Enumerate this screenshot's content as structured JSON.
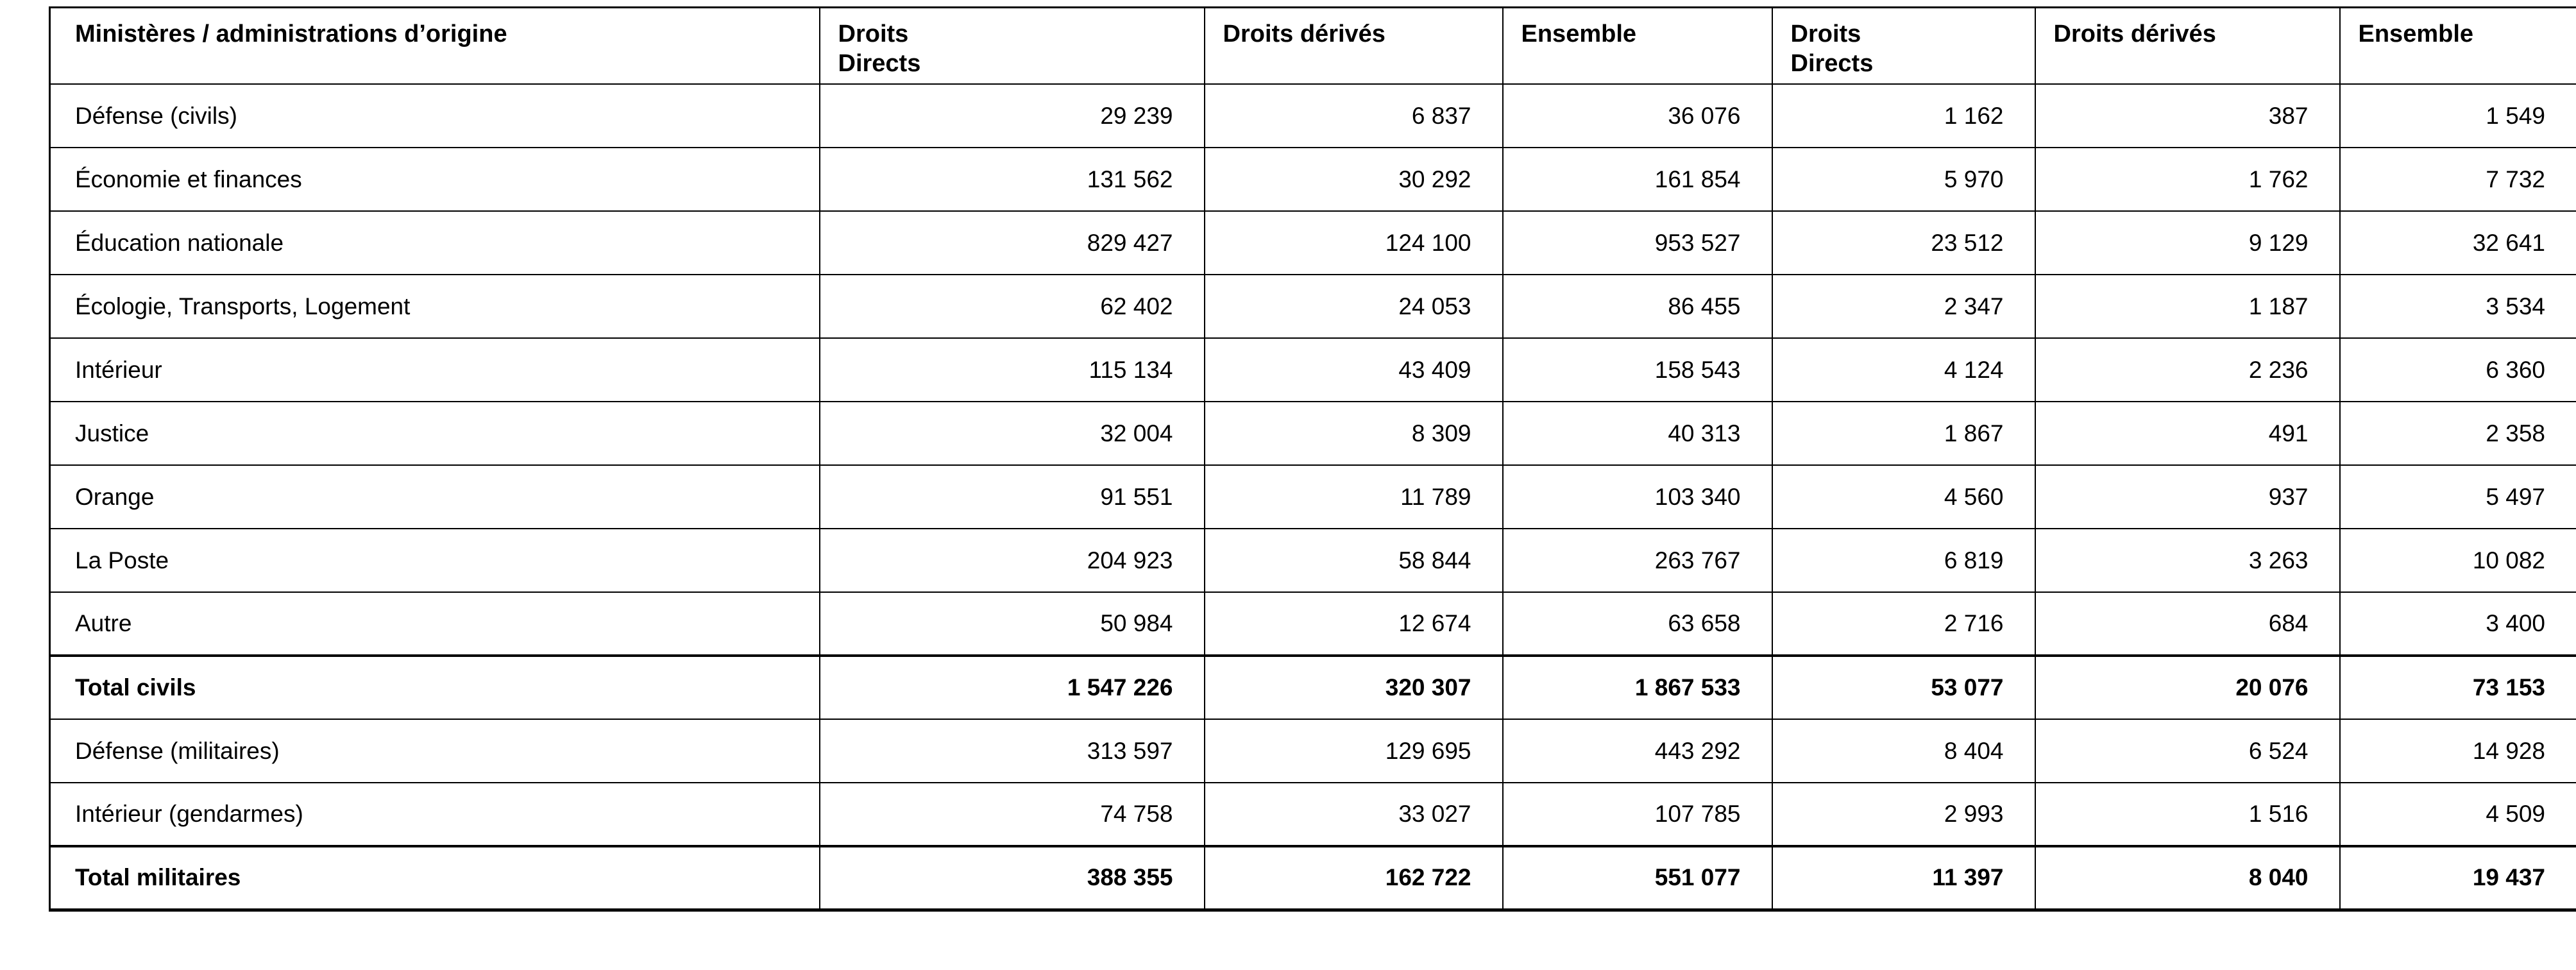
{
  "table": {
    "header": [
      "Ministères / administrations d’origine",
      "Droits\nDirects",
      "Droits dérivés",
      "Ensemble",
      "Droits\nDirects",
      "Droits dérivés",
      "Ensemble"
    ],
    "rows": [
      {
        "ministry": "Défense (civils)",
        "values": [
          "29 239",
          "6 837",
          "36 076",
          "1 162",
          "387",
          "1 549"
        ],
        "bold": false
      },
      {
        "ministry": "Économie et finances",
        "values": [
          "131 562",
          "30 292",
          "161 854",
          "5 970",
          "1 762",
          "7 732"
        ],
        "bold": false
      },
      {
        "ministry": "Éducation nationale",
        "values": [
          "829 427",
          "124 100",
          "953 527",
          "23 512",
          "9 129",
          "32 641"
        ],
        "bold": false
      },
      {
        "ministry": "Écologie, Transports, Logement",
        "values": [
          "62 402",
          "24 053",
          "86 455",
          "2 347",
          "1 187",
          "3 534"
        ],
        "bold": false
      },
      {
        "ministry": "Intérieur",
        "values": [
          "115 134",
          "43 409",
          "158 543",
          "4 124",
          "2 236",
          "6 360"
        ],
        "bold": false
      },
      {
        "ministry": "Justice",
        "values": [
          "32 004",
          "8 309",
          "40 313",
          "1 867",
          "491",
          "2 358"
        ],
        "bold": false
      },
      {
        "ministry": "Orange",
        "values": [
          "91 551",
          "11 789",
          "103 340",
          "4 560",
          "937",
          "5 497"
        ],
        "bold": false
      },
      {
        "ministry": "La Poste",
        "values": [
          "204 923",
          "58 844",
          "263 767",
          "6 819",
          "3 263",
          "10 082"
        ],
        "bold": false
      },
      {
        "ministry": "Autre",
        "values": [
          "50 984",
          "12 674",
          "63 658",
          "2 716",
          "684",
          "3 400"
        ],
        "bold": false
      },
      {
        "ministry": "Total civils",
        "values": [
          "1 547 226",
          "320 307",
          "1 867 533",
          "53 077",
          "20 076",
          "73 153"
        ],
        "bold": true
      },
      {
        "ministry": "Défense (militaires)",
        "values": [
          "313 597",
          "129 695",
          "443 292",
          "8 404",
          "6 524",
          "14 928"
        ],
        "bold": false
      },
      {
        "ministry": "Intérieur (gendarmes)",
        "values": [
          "74 758",
          "33 027",
          "107 785",
          "2 993",
          "1 516",
          "4 509"
        ],
        "bold": false
      },
      {
        "ministry": "Total militaires",
        "values": [
          "388 355",
          "162 722",
          "551 077",
          "11 397",
          "8 040",
          "19 437"
        ],
        "bold": true
      }
    ]
  }
}
